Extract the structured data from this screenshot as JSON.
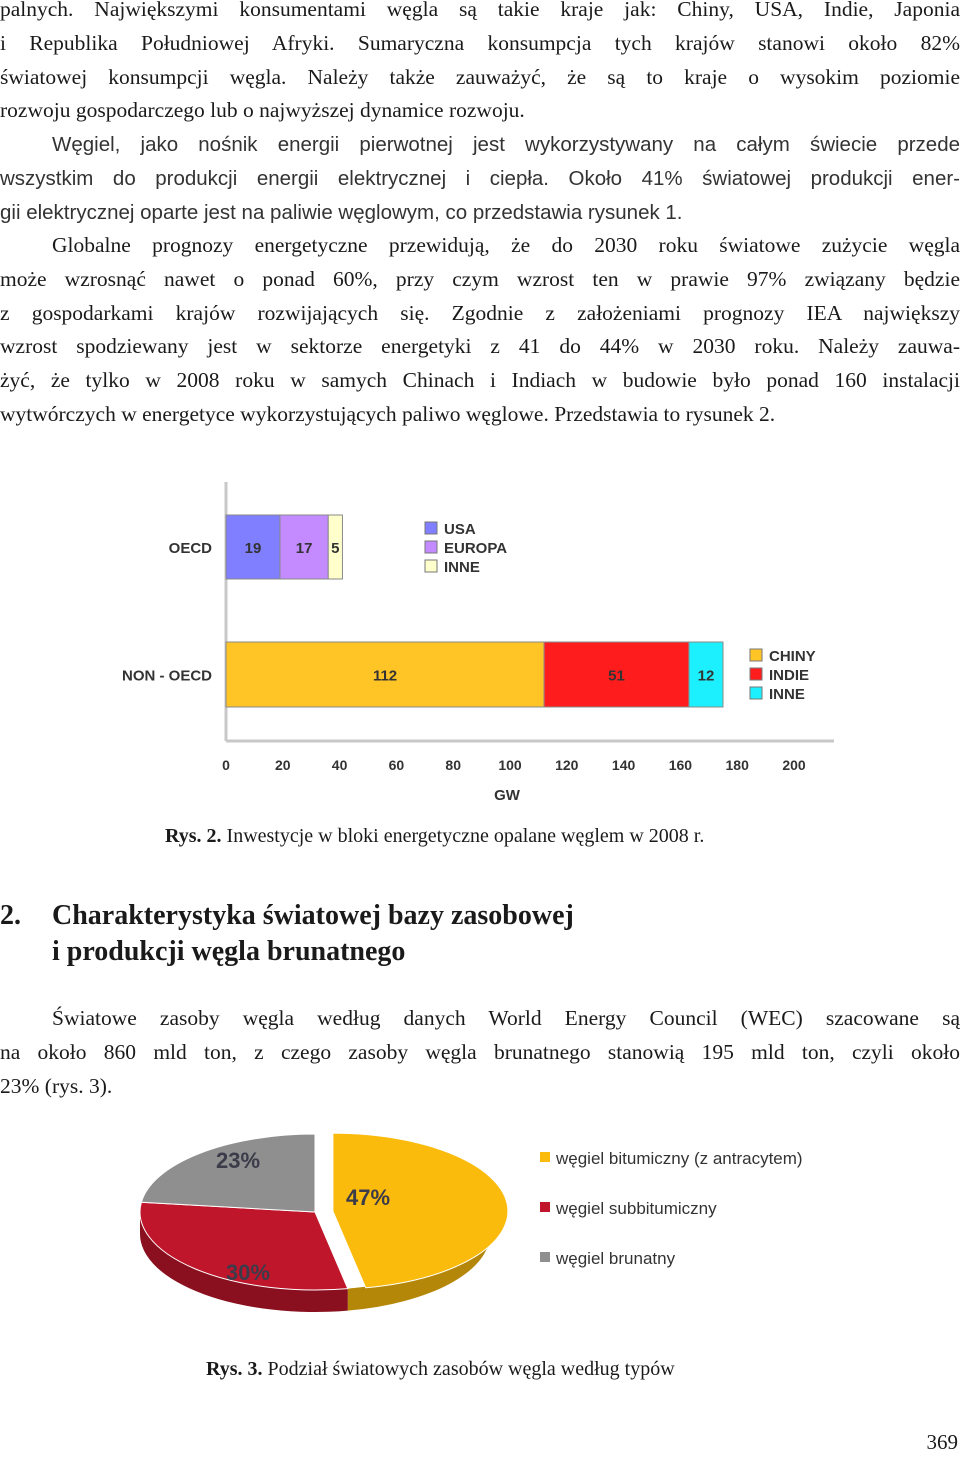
{
  "paragraphs": {
    "p1": [
      "palnych. Największymi konsumentami węgla są takie kraje jak: Chiny, USA, Indie, Japonia",
      "i Republika Południowej Afryki. Sumaryczna konsumpcja tych krajów stanowi około 82%",
      "światowej konsumpcji węgla. Należy także zauważyć, że są to kraje o wysokim poziomie",
      "rozwoju gospodarczego lub o najwyższej dynamice rozwoju."
    ],
    "p2": [
      "Węgiel, jako nośnik energii pierwotnej jest wykorzystywany na całym świecie przede",
      "wszystkim do produkcji energii elektrycznej i ciepła. Około 41% światowej produkcji ener-",
      "gii elektrycznej oparte jest na paliwie węglowym, co przedstawia rysunek 1."
    ],
    "p3": [
      "Globalne prognozy energetyczne przewidują, że do 2030 roku światowe zużycie węgla",
      "może wzrosnąć nawet o ponad 60%, przy czym wzrost ten w prawie 97% związany będzie",
      "z gospodarkami krajów rozwijających się. Zgodnie z założeniami prognozy IEA największy",
      "wzrost spodziewany jest w sektorze energetyki z 41 do 44% w 2030 roku. Należy zauwa-",
      "żyć, że tylko w 2008 roku w samych Chinach i Indiach w budowie było ponad 160 instalacji",
      "wytwórczych w energetyce wykorzystujących paliwo węglowe. Przedstawia to rysunek 2."
    ],
    "p4": [
      "Światowe zasoby węgla według danych World Energy Council (WEC) szacowane są",
      "na około 860 mld ton, z czego zasoby węgla brunatnego stanowią 195 mld ton, czyli około",
      "23% (rys. 3)."
    ]
  },
  "figure2": {
    "caption_label": "Rys. 2.",
    "caption_text": " Inwestycje w bloki energetyczne opalane węglem w 2008 r."
  },
  "section": {
    "number": "2.",
    "title_line1": "Charakterystyka światowej bazy zasobowej",
    "title_line2": "i produkcji węgla brunatnego"
  },
  "figure3": {
    "caption_label": "Rys. 3.",
    "caption_text": " Podział światowych zasobów węgla według typów"
  },
  "page_number": "369",
  "chart_data": [
    {
      "type": "bar",
      "orientation": "horizontal-stacked",
      "categories": [
        "OECD",
        "NON - OECD"
      ],
      "groups": [
        {
          "category": "OECD",
          "segments": [
            {
              "name": "USA",
              "value": 19,
              "color": "#7f7fff"
            },
            {
              "name": "EUROPA",
              "value": 17,
              "color": "#c38bff"
            },
            {
              "name": "INNE",
              "value": 5,
              "color": "#ffffcc"
            }
          ]
        },
        {
          "category": "NON - OECD",
          "segments": [
            {
              "name": "CHINY",
              "value": 112,
              "color": "#ffc425"
            },
            {
              "name": "INDIE",
              "value": 51,
              "color": "#ff1c1c"
            },
            {
              "name": "INNE",
              "value": 12,
              "color": "#1cf0ff"
            }
          ]
        }
      ],
      "legends": [
        {
          "category": "OECD",
          "items": [
            "USA",
            "EUROPA",
            "INNE"
          ]
        },
        {
          "category": "NON - OECD",
          "items": [
            "CHINY",
            "INDIE",
            "INNE"
          ]
        }
      ],
      "xlabel": "GW",
      "xlim": [
        0,
        200
      ],
      "xticks": [
        "0",
        "20",
        "40",
        "60",
        "80",
        "100",
        "120",
        "140",
        "160",
        "180",
        "200"
      ]
    },
    {
      "type": "pie",
      "style": "3d",
      "slices": [
        {
          "label": "węgiel bitumiczny (z antracytem)",
          "value": 47,
          "text": "47%",
          "color": "#fbbb0c"
        },
        {
          "label": "węgiel subbitumiczny",
          "value": 30,
          "text": "30%",
          "color": "#c0162b"
        },
        {
          "label": "węgiel brunatny",
          "value": 23,
          "text": "23%",
          "color": "#8f8f8f"
        }
      ],
      "legend_position": "right"
    }
  ]
}
